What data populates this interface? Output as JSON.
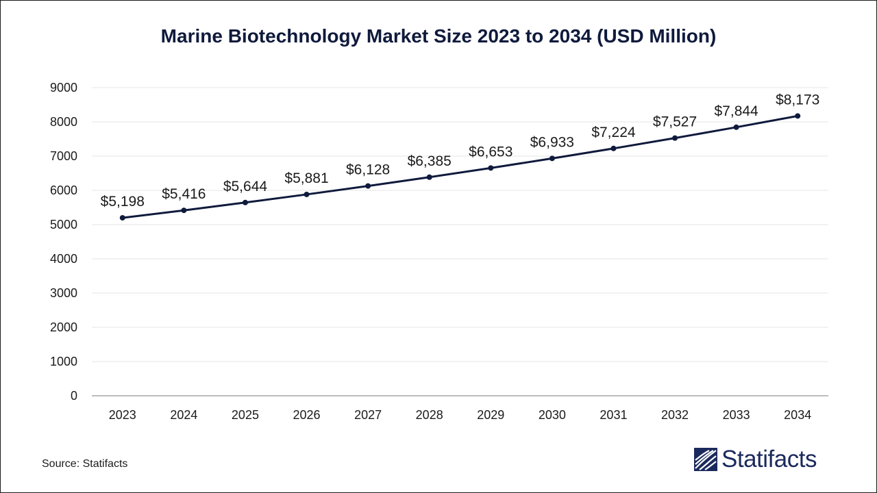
{
  "chart_data": {
    "type": "line",
    "title": "Marine Biotechnology Market Size 2023 to 2034 (USD Million)",
    "xlabel": "",
    "ylabel": "",
    "categories": [
      "2023",
      "2024",
      "2025",
      "2026",
      "2027",
      "2028",
      "2029",
      "2030",
      "2031",
      "2032",
      "2033",
      "2034"
    ],
    "values": [
      5198,
      5416,
      5644,
      5881,
      6128,
      6385,
      6653,
      6933,
      7224,
      7527,
      7844,
      8173
    ],
    "data_labels": [
      "$5,198",
      "$5,416",
      "$5,644",
      "$5,881",
      "$6,128",
      "$6,385",
      "$6,653",
      "$6,933",
      "$7,224",
      "$7,527",
      "$7,844",
      "$8,173"
    ],
    "ylim": [
      0,
      9000
    ],
    "yticks": [
      "0",
      "1000",
      "2000",
      "3000",
      "4000",
      "5000",
      "6000",
      "7000",
      "8000",
      "9000"
    ],
    "grid": true,
    "legend": "none",
    "line_color": "#0f1a3c"
  },
  "source": "Source: Statifacts",
  "logo": {
    "text": "Statifacts",
    "color": "#1b2a5c"
  }
}
